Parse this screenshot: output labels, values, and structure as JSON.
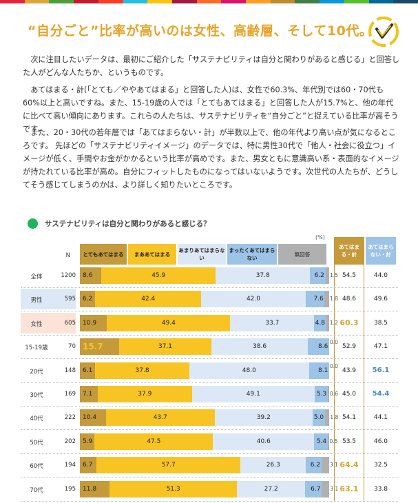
{
  "header": {
    "strip_colors": [
      "#e5243b",
      "#dda63a",
      "#4c9f38",
      "#c5192d",
      "#ff3a21",
      "#26bde2",
      "#fcc30b",
      "#a21942",
      "#fd6925",
      "#dd1367",
      "#fd9d24",
      "#bf8b2e",
      "#3f7e44",
      "#0a97d9",
      "#56c02b",
      "#00689d",
      "#19486a"
    ],
    "title": "“自分ごと”比率が高いのは女性、高齢層、そして10代。"
  },
  "body": {
    "p1": "次に注目したいデータは、最初にご紹介した「サステナビリティは自分と関わりがあると感じる」と回答した人がどんな人たちか、というものです。",
    "p2": "あてはまる・計(「とても／ややあてはまる」と回答した人)は、女性で60.3%、年代別では60・70代も60%以上と高いですね。また、15-19歳の人では「とてもあてはまる」と回答した人が15.7%と、他の年代に比べて高い傾向にあります。これらの人たちは、サステナビリティを“自分ごと”と捉えている比率が高そうです。",
    "p3": "また、20・30代の若年層では「あてはまらない・計」が半数以上で、他の年代より高い点が気になるところです。 先ほどの「サステナビリティイメージ」のデータでは、特に男性30代で「他人・社会に役立つ」イメージが低く、手間やお金がかかるという比率が高めです。また、男女ともに意識高い系・表面的なイメージが持たれている比率が高め。自分にフィットしたものになってはいないようです。次世代の人たちが、どうしてそう感じてしまうのかは、より詳しく知りたいところです。"
  },
  "chart_data": {
    "type": "bar",
    "orientation": "horizontal-stacked-100",
    "title": "サステナビリティは自分と関わりがあると感じる？",
    "unit_note": "(%)",
    "n_label": "N",
    "categories": [
      "全体",
      "男性",
      "女性",
      "15-19歳",
      "20代",
      "30代",
      "40代",
      "50代",
      "60代",
      "70代"
    ],
    "n": [
      1200,
      595,
      605,
      70,
      148,
      169,
      222,
      202,
      194,
      195
    ],
    "series": [
      {
        "name": "とてもあてはまる",
        "color": "#c49a3a",
        "values": [
          8.6,
          6.2,
          10.9,
          15.7,
          6.1,
          7.1,
          10.4,
          5.9,
          6.7,
          11.8
        ]
      },
      {
        "name": "まああてはまる",
        "color": "#f7c424",
        "values": [
          45.9,
          42.4,
          49.4,
          37.1,
          37.8,
          37.9,
          43.7,
          47.5,
          57.7,
          51.3
        ]
      },
      {
        "name": "あまりあてはまらない",
        "color": "#dce8f5",
        "values": [
          37.8,
          42.0,
          33.7,
          38.6,
          48.0,
          49.1,
          39.2,
          40.6,
          26.3,
          27.2
        ]
      },
      {
        "name": "まったくあてはまらない",
        "color": "#9dc3e6",
        "values": [
          6.2,
          7.6,
          4.8,
          8.6,
          8.1,
          5.3,
          5.0,
          5.4,
          6.2,
          6.7
        ]
      },
      {
        "name": "無回答",
        "color": "#b0b0b0",
        "values": [
          1.5,
          1.8,
          1.2,
          0.0,
          0.0,
          0.6,
          1.8,
          0.5,
          3.1,
          3.1
        ]
      }
    ],
    "totals": {
      "agree_label": "あてはまる・計",
      "disagree_label": "あてはまらない・計",
      "agree": [
        54.5,
        48.6,
        60.3,
        52.9,
        43.9,
        45.0,
        54.1,
        53.5,
        64.4,
        63.1
      ],
      "disagree": [
        44.0,
        49.6,
        38.5,
        47.1,
        56.1,
        54.4,
        44.1,
        46.0,
        32.5,
        33.8
      ]
    },
    "highlights": {
      "row_colors": [
        "#ffffff",
        "#dde8f6",
        "#fbe3d8",
        "#ffffff",
        "#ffffff",
        "#ffffff",
        "#ffffff",
        "#ffffff",
        "#ffffff",
        "#ffffff"
      ],
      "agree_highlight": [
        false,
        false,
        true,
        false,
        false,
        false,
        false,
        false,
        true,
        true
      ],
      "disagree_highlight": [
        false,
        false,
        false,
        false,
        true,
        true,
        false,
        false,
        false,
        false
      ],
      "bold_first_segment": [
        false,
        false,
        false,
        true,
        false,
        false,
        false,
        false,
        false,
        false
      ],
      "agree_header_color": "#c49a3a",
      "disagree_header_color": "#9dc3e6",
      "agree_highlight_color": "#d4a72c",
      "disagree_highlight_color": "#4a86c8"
    }
  }
}
